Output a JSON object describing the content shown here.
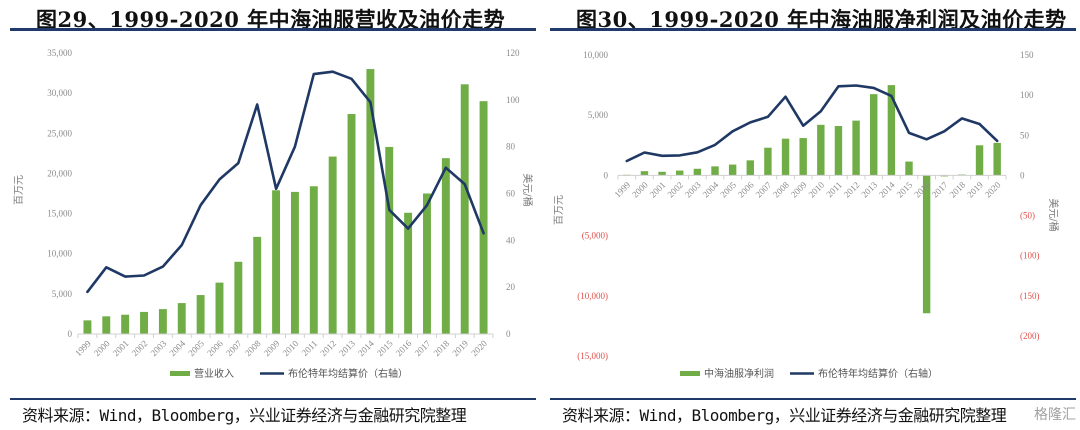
{
  "chart_data": [
    {
      "type": "bar+line",
      "title": "图29、1999-2020 年中海油服营收及油价走势",
      "categories": [
        "1999",
        "2000",
        "2001",
        "2002",
        "2003",
        "2004",
        "2005",
        "2006",
        "2007",
        "2008",
        "2009",
        "2010",
        "2011",
        "2012",
        "2013",
        "2014",
        "2015",
        "2016",
        "2017",
        "2018",
        "2019",
        "2020"
      ],
      "series": [
        {
          "name": "营业收入",
          "type": "bar",
          "axis": "left",
          "color": "#70ad47",
          "values": [
            1700,
            2200,
            2400,
            2750,
            3100,
            3850,
            4850,
            6400,
            9000,
            12100,
            17900,
            17700,
            18400,
            22100,
            27400,
            33000,
            23300,
            15100,
            17500,
            21900,
            31100,
            29000
          ]
        },
        {
          "name": "布伦特年均结算价（右轴）",
          "type": "line",
          "axis": "right",
          "color": "#1f3864",
          "values": [
            18,
            28.5,
            24.5,
            25,
            28.8,
            38,
            55,
            66,
            73,
            98,
            62,
            80,
            111,
            112,
            109,
            99,
            53,
            45,
            55,
            71,
            64,
            43
          ]
        }
      ],
      "ylabel": "百万元",
      "y2label": "美元/桶",
      "ylim": [
        0,
        35000
      ],
      "y2lim": [
        0,
        120
      ],
      "yticks": [
        "0",
        "5,000",
        "10,000",
        "15,000",
        "20,000",
        "25,000",
        "30,000",
        "35,000"
      ],
      "y2ticks": [
        "0",
        "20",
        "40",
        "60",
        "80",
        "100",
        "120"
      ],
      "legend": "bottom",
      "grid": false
    },
    {
      "type": "bar+line",
      "title": "图30、1999-2020 年中海油服净利润及油价走势",
      "categories": [
        "1999",
        "2000",
        "2001",
        "2002",
        "2003",
        "2004",
        "2005",
        "2006",
        "2007",
        "2008",
        "2009",
        "2010",
        "2011",
        "2012",
        "2013",
        "2014",
        "2015",
        "2016",
        "2017",
        "2018",
        "2019",
        "2020"
      ],
      "series": [
        {
          "name": "中海油服净利润",
          "type": "bar",
          "axis": "left",
          "color": "#70ad47",
          "values": [
            50,
            350,
            300,
            400,
            550,
            750,
            900,
            1250,
            2300,
            3050,
            3100,
            4200,
            4100,
            4550,
            6750,
            7500,
            1150,
            -11450,
            -80,
            70,
            2500,
            2700
          ]
        },
        {
          "name": "布伦特年均结算价（右轴）",
          "type": "line",
          "axis": "right",
          "color": "#1f3864",
          "values": [
            18,
            28.5,
            24.5,
            25,
            28.8,
            38,
            55,
            66,
            73,
            98,
            62,
            80,
            111,
            112,
            109,
            99,
            53,
            45,
            55,
            71,
            64,
            43
          ]
        }
      ],
      "ylabel": "百万元",
      "y2label": "美元/桶",
      "ylim": [
        -15000,
        10000
      ],
      "y2lim": [
        -200,
        150
      ],
      "yticks": [
        "(15,000)",
        "(10,000)",
        "(5,000)",
        "0",
        "5,000",
        "10,000"
      ],
      "y2ticks": [
        "(200)",
        "(150)",
        "(100)",
        "(50)",
        "0",
        "50",
        "100",
        "150"
      ],
      "legend": "bottom",
      "grid": false
    }
  ],
  "sources": [
    "资料来源：Wind，Bloomberg，兴业证券经济与金融研究院整理",
    "资料来源：Wind，Bloomberg，兴业证券经济与金融研究院整理"
  ],
  "watermark": "格隆汇",
  "colors": {
    "bar": "#70ad47",
    "line": "#1f3864",
    "rule": "#1f3a6b",
    "negative_tick": "#e0504a"
  }
}
